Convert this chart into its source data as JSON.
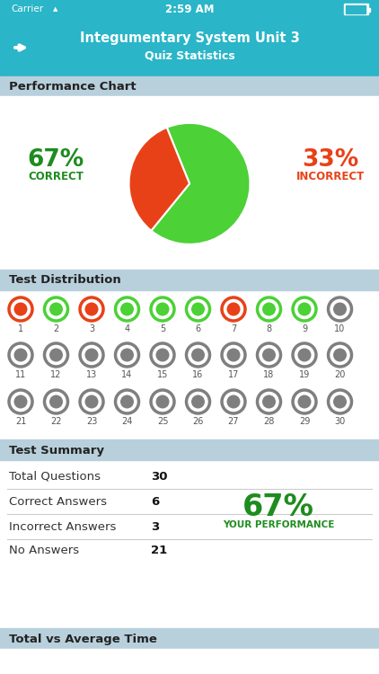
{
  "bg_color": "#ffffff",
  "header_color": "#2ab5c8",
  "section_header_color": "#b8d0dc",
  "nav_title": "Integumentary System Unit 3",
  "nav_subtitle": "Quiz Statistics",
  "section1_title": "Performance Chart",
  "pie_correct_pct": 67,
  "pie_incorrect_pct": 33,
  "pie_correct_color": "#4cd137",
  "pie_incorrect_color": "#e84118",
  "correct_label": "CORRECT",
  "incorrect_label": "INCORRECT",
  "correct_color": "#1e8c1e",
  "incorrect_color": "#e84118",
  "section2_title": "Test Distribution",
  "questions": [
    {
      "num": 1,
      "state": "incorrect"
    },
    {
      "num": 2,
      "state": "correct"
    },
    {
      "num": 3,
      "state": "incorrect"
    },
    {
      "num": 4,
      "state": "correct"
    },
    {
      "num": 5,
      "state": "correct"
    },
    {
      "num": 6,
      "state": "correct"
    },
    {
      "num": 7,
      "state": "incorrect"
    },
    {
      "num": 8,
      "state": "correct"
    },
    {
      "num": 9,
      "state": "correct"
    },
    {
      "num": 10,
      "state": "noanswer"
    },
    {
      "num": 11,
      "state": "noanswer"
    },
    {
      "num": 12,
      "state": "noanswer"
    },
    {
      "num": 13,
      "state": "noanswer"
    },
    {
      "num": 14,
      "state": "noanswer"
    },
    {
      "num": 15,
      "state": "noanswer"
    },
    {
      "num": 16,
      "state": "noanswer"
    },
    {
      "num": 17,
      "state": "noanswer"
    },
    {
      "num": 18,
      "state": "noanswer"
    },
    {
      "num": 19,
      "state": "noanswer"
    },
    {
      "num": 20,
      "state": "noanswer"
    },
    {
      "num": 21,
      "state": "noanswer"
    },
    {
      "num": 22,
      "state": "noanswer"
    },
    {
      "num": 23,
      "state": "noanswer"
    },
    {
      "num": 24,
      "state": "noanswer"
    },
    {
      "num": 25,
      "state": "noanswer"
    },
    {
      "num": 26,
      "state": "noanswer"
    },
    {
      "num": 27,
      "state": "noanswer"
    },
    {
      "num": 28,
      "state": "noanswer"
    },
    {
      "num": 29,
      "state": "noanswer"
    },
    {
      "num": 30,
      "state": "noanswer"
    }
  ],
  "section3_title": "Test Summary",
  "summary_rows": [
    {
      "label": "Total Questions",
      "value": "30"
    },
    {
      "label": "Correct Answers",
      "value": "6"
    },
    {
      "label": "Incorrect Answers",
      "value": "3"
    },
    {
      "label": "No Answers",
      "value": "21"
    }
  ],
  "performance_pct": "67%",
  "performance_label": "YOUR PERFORMANCE",
  "performance_color": "#1e8c1e",
  "section4_title": "Total vs Average Time",
  "incorrect_outer": "#e84118",
  "incorrect_inner": "#e84118",
  "correct_outer": "#4cd137",
  "correct_inner": "#4cd137",
  "noanswer_outer": "#7f7f7f",
  "noanswer_inner": "#7f7f7f"
}
